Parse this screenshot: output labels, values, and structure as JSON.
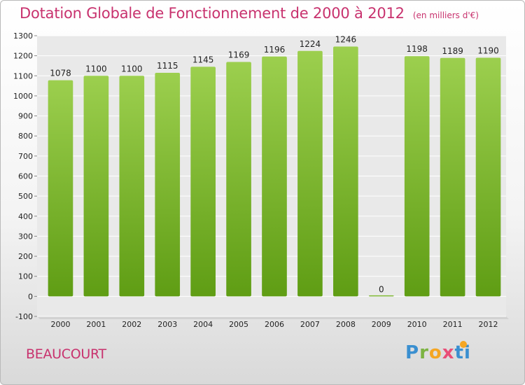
{
  "header": {
    "title": "Dotation Globale de Fonctionnement de 2000 à 2012",
    "unit_note": "(en milliers d'€)"
  },
  "footer": {
    "city": "BEAUCOURT",
    "logo": {
      "p": "P",
      "r": "r",
      "o": "o",
      "x": "x",
      "i": "i",
      "t": "ti"
    }
  },
  "colors": {
    "title": "#c8326e",
    "bar_light": "#9ccf4e",
    "bar_dark": "#5f9d14",
    "plot_bg": "#e9e9e9",
    "grid": "#ffffff"
  },
  "chart_data": {
    "type": "bar",
    "title": "Dotation Globale de Fonctionnement de 2000 à 2012",
    "subtitle": "(en milliers d'€)",
    "xlabel": "",
    "ylabel": "",
    "categories": [
      "2000",
      "2001",
      "2002",
      "2003",
      "2004",
      "2005",
      "2006",
      "2007",
      "2008",
      "2009",
      "2010",
      "2011",
      "2012"
    ],
    "values": [
      1078,
      1100,
      1100,
      1115,
      1145,
      1169,
      1196,
      1224,
      1246,
      0,
      1198,
      1189,
      1190
    ],
    "ylim": [
      -100,
      1300
    ],
    "yticks": [
      -100,
      0,
      100,
      200,
      300,
      400,
      500,
      600,
      700,
      800,
      900,
      1000,
      1100,
      1200,
      1300
    ],
    "grid": true,
    "legend": "none"
  }
}
